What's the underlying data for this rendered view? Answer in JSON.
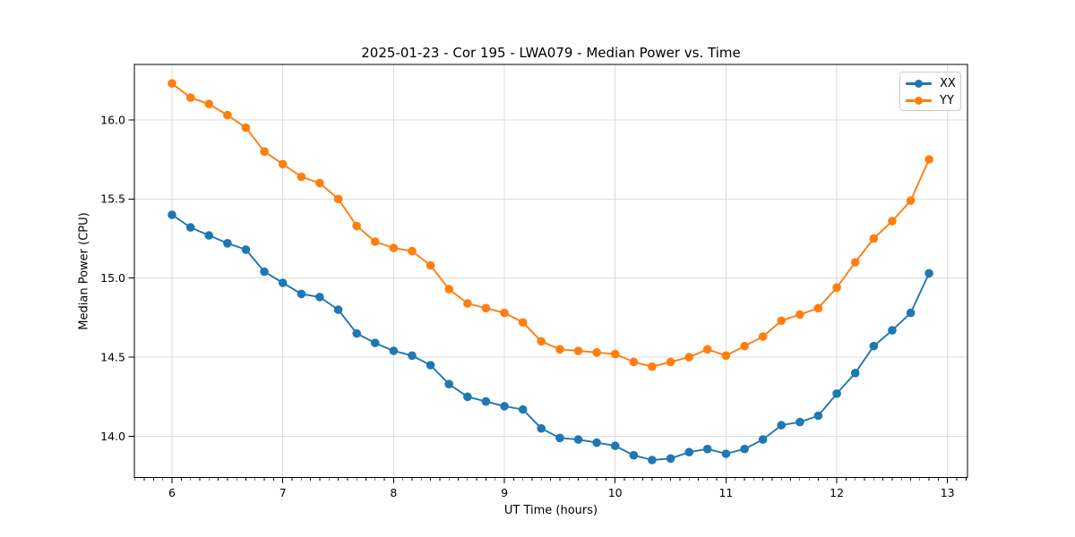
{
  "chart_data": {
    "type": "line",
    "title": "2025-01-23 - Cor 195 - LWA079 - Median Power vs. Time",
    "xlabel": "UT Time (hours)",
    "ylabel": "Median Power (CPU)",
    "xlim": [
      5.66,
      13.18
    ],
    "ylim": [
      13.74,
      16.35
    ],
    "xticks": [
      6,
      7,
      8,
      9,
      10,
      11,
      12,
      13
    ],
    "xtick_labels": [
      "6",
      "7",
      "8",
      "9",
      "10",
      "11",
      "12",
      "13"
    ],
    "yticks": [
      14.0,
      14.5,
      15.0,
      15.5,
      16.0
    ],
    "ytick_labels": [
      "14.0",
      "14.5",
      "15.0",
      "15.5",
      "16.0"
    ],
    "x_minor_step": 0.08333,
    "grid": true,
    "grid_color": "#dcdcdc",
    "legend_position": "upper right",
    "x": [
      6.0,
      6.167,
      6.333,
      6.5,
      6.667,
      6.833,
      7.0,
      7.167,
      7.333,
      7.5,
      7.667,
      7.833,
      8.0,
      8.167,
      8.333,
      8.5,
      8.667,
      8.833,
      9.0,
      9.167,
      9.333,
      9.5,
      9.667,
      9.833,
      10.0,
      10.167,
      10.333,
      10.5,
      10.667,
      10.833,
      11.0,
      11.167,
      11.333,
      11.5,
      11.667,
      11.833,
      12.0,
      12.167,
      12.333,
      12.5,
      12.667,
      12.833
    ],
    "series": [
      {
        "name": "XX",
        "color": "#1f77b4",
        "values": [
          15.4,
          15.32,
          15.27,
          15.22,
          15.18,
          15.04,
          14.97,
          14.9,
          14.88,
          14.8,
          14.65,
          14.59,
          14.54,
          14.51,
          14.45,
          14.33,
          14.25,
          14.22,
          14.19,
          14.17,
          14.05,
          13.99,
          13.98,
          13.96,
          13.94,
          13.88,
          13.85,
          13.86,
          13.9,
          13.92,
          13.89,
          13.92,
          13.98,
          14.07,
          14.09,
          14.13,
          14.27,
          14.4,
          14.57,
          14.67,
          14.78,
          15.03
        ]
      },
      {
        "name": "YY",
        "color": "#ff7f0e",
        "values": [
          16.23,
          16.14,
          16.1,
          16.03,
          15.95,
          15.8,
          15.72,
          15.64,
          15.6,
          15.5,
          15.33,
          15.23,
          15.19,
          15.17,
          15.08,
          14.93,
          14.84,
          14.81,
          14.78,
          14.72,
          14.6,
          14.55,
          14.54,
          14.53,
          14.52,
          14.47,
          14.44,
          14.47,
          14.5,
          14.55,
          14.51,
          14.57,
          14.63,
          14.73,
          14.77,
          14.81,
          14.94,
          15.1,
          15.25,
          15.36,
          15.49,
          15.75
        ]
      }
    ]
  }
}
